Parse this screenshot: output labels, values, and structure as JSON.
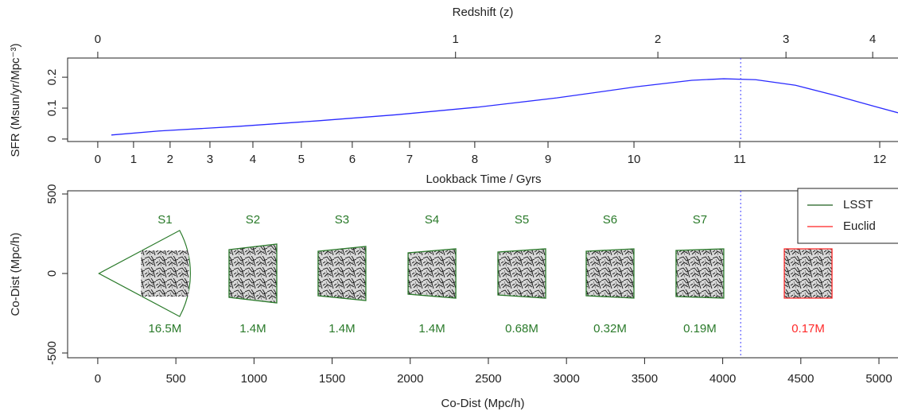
{
  "chart_data": {
    "type": "line",
    "redshift_axis": {
      "label": "Redshift (z)",
      "ticks": [
        0,
        1,
        2,
        3,
        4
      ],
      "codist": [
        0,
        2290,
        3585,
        4405,
        4960
      ]
    },
    "lookback_axis": {
      "label": "Lookback Time / Gyrs",
      "ticks": [
        0,
        1,
        2,
        3,
        4,
        5,
        6,
        7,
        8,
        9,
        10,
        11,
        12
      ],
      "codist": [
        0,
        229,
        463,
        718,
        993,
        1303,
        1629,
        1996,
        2413,
        2882,
        3432,
        4109,
        5005
      ]
    },
    "xlim": [
      -193,
      5122
    ],
    "sfr_panel": {
      "ylabel": "SFR (Msun/yr/Mpc⁻³)",
      "ylim": [
        -0.008,
        0.262
      ],
      "yticks": [
        0,
        0.1,
        0.2
      ],
      "color": "#2a2aff",
      "x": [
        87,
        392,
        901,
        1410,
        1920,
        2429,
        2938,
        3447,
        3803,
        4007,
        4211,
        4466,
        4720,
        4975,
        5122
      ],
      "values": [
        0.013,
        0.026,
        0.041,
        0.059,
        0.079,
        0.103,
        0.133,
        0.169,
        0.19,
        0.195,
        0.192,
        0.174,
        0.141,
        0.105,
        0.085
      ],
      "vline": 4115
    },
    "dist_panel": {
      "xlabel": "Co-Dist (Mpc/h)",
      "ylabel": "Co-Dist (Mpc/h)",
      "ylim": [
        -530,
        520
      ],
      "yticks": [
        -500,
        0,
        500
      ],
      "xticks": [
        0,
        500,
        1000,
        1500,
        2000,
        2500,
        3000,
        3500,
        4000,
        4500,
        5000
      ],
      "vline": 4115,
      "samples": [
        {
          "name": "S1",
          "count": "16.5M",
          "codist": 430,
          "color": "#2a7a2a"
        },
        {
          "name": "S2",
          "count": "1.4M",
          "codist": 993,
          "color": "#2a7a2a"
        },
        {
          "name": "S3",
          "count": "1.4M",
          "codist": 1563,
          "color": "#2a7a2a"
        },
        {
          "name": "S4",
          "count": "1.4M",
          "codist": 2139,
          "color": "#2a7a2a"
        },
        {
          "name": "S5",
          "count": "0.68M",
          "codist": 2714,
          "color": "#2a7a2a"
        },
        {
          "name": "S6",
          "count": "0.32M",
          "codist": 3279,
          "color": "#2a7a2a"
        },
        {
          "name": "S7",
          "count": "0.19M",
          "codist": 3854,
          "color": "#2a7a2a"
        },
        {
          "count": "0.17M",
          "codist": 4547,
          "color": "#ff2a2a"
        }
      ],
      "legend": [
        {
          "name": "LSST",
          "color": "#1f5f1f"
        },
        {
          "name": "Euclid",
          "color": "#ff2020"
        }
      ]
    }
  }
}
